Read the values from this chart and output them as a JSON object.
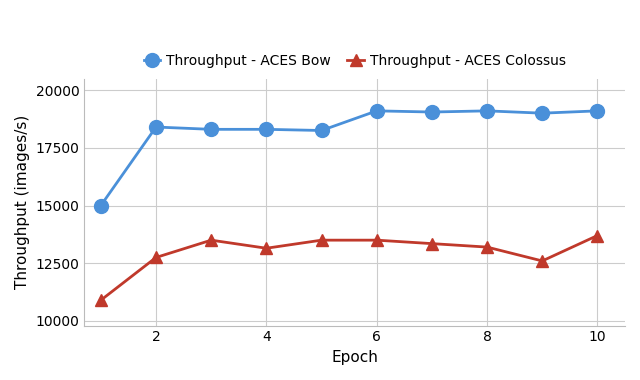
{
  "epochs": [
    1,
    2,
    3,
    4,
    5,
    6,
    7,
    8,
    9,
    10
  ],
  "bow_throughput": [
    15000,
    18400,
    18300,
    18300,
    18250,
    19100,
    19050,
    19100,
    19000,
    19100
  ],
  "colossus_throughput": [
    10900,
    12750,
    13500,
    13150,
    13500,
    13500,
    13350,
    13200,
    12600,
    13700
  ],
  "bow_color": "#4a90d9",
  "colossus_color": "#c0392b",
  "bow_label": "Throughput - ACES Bow",
  "colossus_label": "Throughput - ACES Colossus",
  "xlabel": "Epoch",
  "ylabel": "Throughput (images/s)",
  "ylim": [
    9800,
    20500
  ],
  "yticks": [
    10000,
    12500,
    15000,
    17500,
    20000
  ],
  "xticks": [
    2,
    4,
    6,
    8,
    10
  ],
  "xlim": [
    0.7,
    10.5
  ],
  "background_color": "#ffffff",
  "grid_color": "#cccccc",
  "axis_fontsize": 11,
  "tick_fontsize": 10,
  "marker_size_bow": 10,
  "marker_size_colossus": 9,
  "line_width": 2.0
}
